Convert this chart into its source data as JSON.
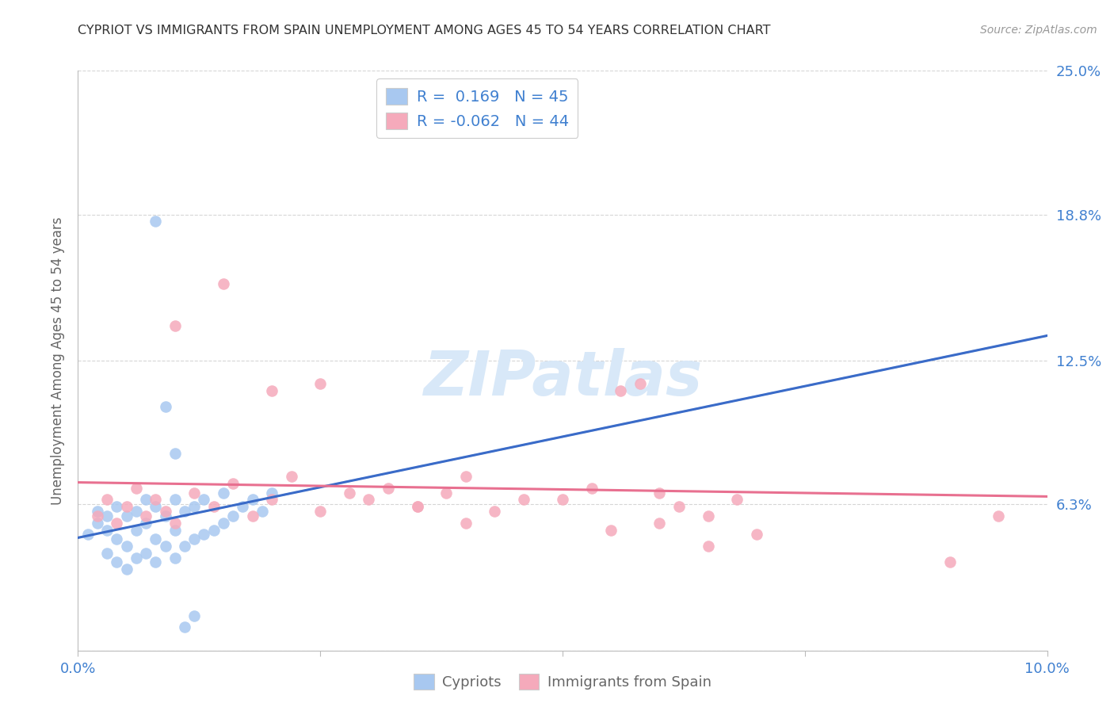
{
  "title": "CYPRIOT VS IMMIGRANTS FROM SPAIN UNEMPLOYMENT AMONG AGES 45 TO 54 YEARS CORRELATION CHART",
  "source": "Source: ZipAtlas.com",
  "ylabel": "Unemployment Among Ages 45 to 54 years",
  "xlim": [
    0.0,
    0.1
  ],
  "ylim": [
    0.0,
    0.25
  ],
  "yticks": [
    0.0,
    0.063,
    0.125,
    0.188,
    0.25
  ],
  "ytick_labels": [
    "",
    "6.3%",
    "12.5%",
    "18.8%",
    "25.0%"
  ],
  "xticks": [
    0.0,
    0.025,
    0.05,
    0.075,
    0.1
  ],
  "xtick_labels": [
    "0.0%",
    "",
    "",
    "",
    "10.0%"
  ],
  "cypriot_R": 0.169,
  "cypriot_N": 45,
  "spain_R": -0.062,
  "spain_N": 44,
  "blue_color": "#A8C8F0",
  "pink_color": "#F5AABB",
  "blue_line_color": "#3A6BC8",
  "pink_line_color": "#E87090",
  "blue_dash_color": "#A8C8F0",
  "axis_label_color": "#4080D0",
  "watermark_color": "#D8E8F8",
  "title_color": "#333333",
  "source_color": "#999999",
  "legend_text_color": "#4080D0",
  "cypriot_x": [
    0.001,
    0.002,
    0.002,
    0.003,
    0.003,
    0.003,
    0.004,
    0.004,
    0.004,
    0.005,
    0.005,
    0.005,
    0.006,
    0.006,
    0.006,
    0.007,
    0.007,
    0.007,
    0.008,
    0.008,
    0.008,
    0.009,
    0.009,
    0.01,
    0.01,
    0.01,
    0.011,
    0.011,
    0.012,
    0.012,
    0.013,
    0.013,
    0.014,
    0.015,
    0.015,
    0.016,
    0.017,
    0.018,
    0.019,
    0.02,
    0.008,
    0.009,
    0.01,
    0.011,
    0.012
  ],
  "cypriot_y": [
    0.05,
    0.055,
    0.06,
    0.042,
    0.052,
    0.058,
    0.038,
    0.048,
    0.062,
    0.035,
    0.045,
    0.058,
    0.04,
    0.052,
    0.06,
    0.042,
    0.055,
    0.065,
    0.038,
    0.048,
    0.062,
    0.045,
    0.058,
    0.04,
    0.052,
    0.065,
    0.045,
    0.06,
    0.048,
    0.062,
    0.05,
    0.065,
    0.052,
    0.055,
    0.068,
    0.058,
    0.062,
    0.065,
    0.06,
    0.068,
    0.185,
    0.105,
    0.085,
    0.01,
    0.015
  ],
  "spain_x": [
    0.002,
    0.003,
    0.004,
    0.005,
    0.006,
    0.007,
    0.008,
    0.009,
    0.01,
    0.012,
    0.014,
    0.016,
    0.018,
    0.02,
    0.022,
    0.025,
    0.028,
    0.03,
    0.032,
    0.035,
    0.038,
    0.04,
    0.043,
    0.046,
    0.05,
    0.053,
    0.056,
    0.058,
    0.06,
    0.062,
    0.065,
    0.068,
    0.01,
    0.015,
    0.02,
    0.025,
    0.035,
    0.04,
    0.055,
    0.06,
    0.065,
    0.07,
    0.09,
    0.095
  ],
  "spain_y": [
    0.058,
    0.065,
    0.055,
    0.062,
    0.07,
    0.058,
    0.065,
    0.06,
    0.055,
    0.068,
    0.062,
    0.072,
    0.058,
    0.065,
    0.075,
    0.06,
    0.068,
    0.065,
    0.07,
    0.062,
    0.068,
    0.075,
    0.06,
    0.065,
    0.065,
    0.07,
    0.112,
    0.115,
    0.068,
    0.062,
    0.058,
    0.065,
    0.14,
    0.158,
    0.112,
    0.115,
    0.062,
    0.055,
    0.052,
    0.055,
    0.045,
    0.05,
    0.038,
    0.058
  ]
}
